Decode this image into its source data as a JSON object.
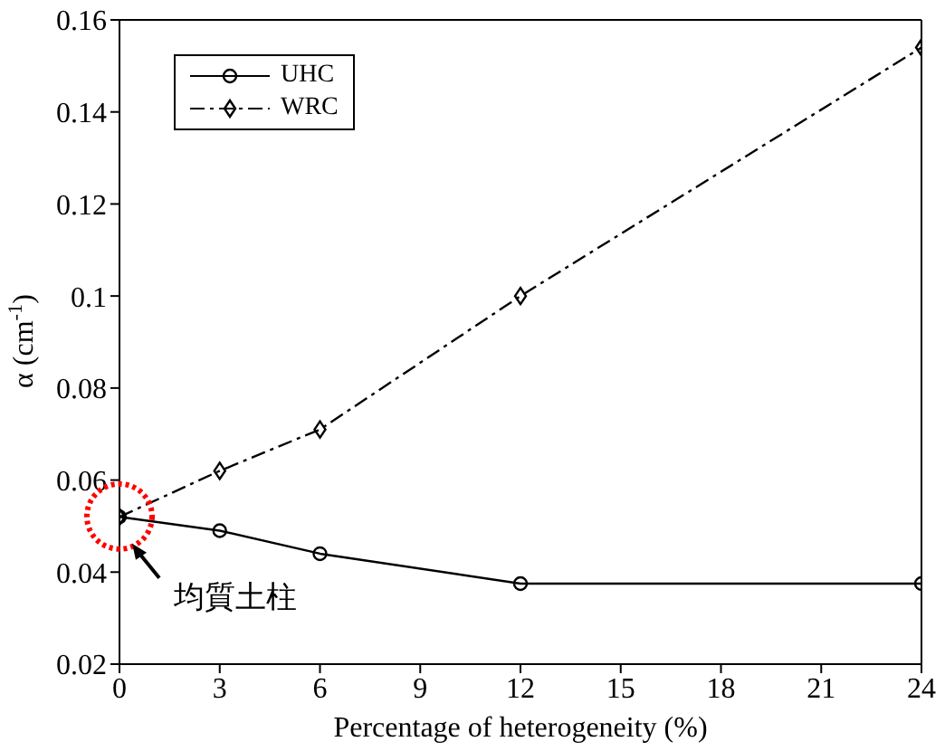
{
  "chart_data": {
    "type": "line",
    "xlabel": "Percentage of heterogeneity (%)",
    "ylabel": "α (cm$^{-1}$)",
    "x": [
      0,
      3,
      6,
      12,
      24
    ],
    "series": [
      {
        "name": "UHC",
        "color": "#000000",
        "values": [
          0.052,
          0.049,
          0.044,
          0.0375,
          0.0375
        ],
        "marker": "circle",
        "line_style": "solid"
      },
      {
        "name": "WRC",
        "color": "#000000",
        "values": [
          0.052,
          0.062,
          0.071,
          0.1,
          0.154
        ],
        "marker": "diamond",
        "line_style": "dashed"
      }
    ],
    "xlim": [
      0,
      24
    ],
    "xticks": [
      0,
      3,
      6,
      9,
      12,
      15,
      18,
      21,
      24
    ],
    "ylim": [
      0.02,
      0.16
    ],
    "yticks": [
      0.02,
      0.04,
      0.06,
      0.08,
      0.1,
      0.12,
      0.14,
      0.16
    ],
    "grid": false,
    "legend": "top left",
    "annotations": [
      {
        "text": "均質土柱",
        "x": 0,
        "y": 0.052
      }
    ]
  }
}
